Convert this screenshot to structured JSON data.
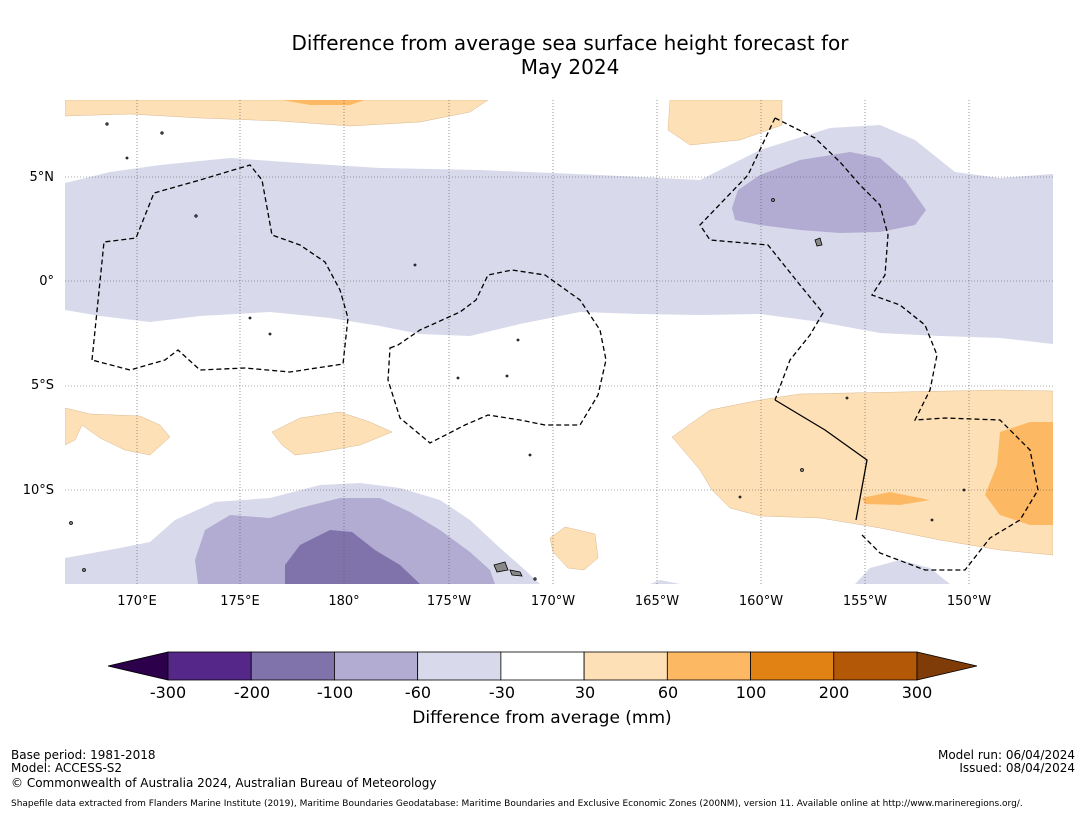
{
  "title": {
    "line1": "Difference from average sea surface height forecast for",
    "line2": "May 2024"
  },
  "map": {
    "lat_labels": [
      "5°N",
      "0°",
      "5°S",
      "10°S"
    ],
    "lon_labels": [
      "170°E",
      "175°E",
      "180°",
      "175°W",
      "170°W",
      "165°W",
      "160°W",
      "155°W",
      "150°W"
    ]
  },
  "colorbar": {
    "ticks": [
      "-300",
      "-200",
      "-100",
      "-60",
      "-30",
      "30",
      "60",
      "100",
      "200",
      "300"
    ],
    "colors": [
      "#2d004b",
      "#542788",
      "#8073ac",
      "#b2abd2",
      "#d8daeb",
      "#ffffff",
      "#fee0b6",
      "#fdb863",
      "#e08214",
      "#b35806",
      "#7f3b08"
    ],
    "title": "Difference from average (mm)"
  },
  "footer": {
    "base_period": "Base period: 1981-2018",
    "model": "Model: ACCESS-S2",
    "copyright": "© Commonwealth of Australia 2024, Australian Bureau of Meteorology",
    "model_run": "Model run: 06/04/2024",
    "issued": "Issued: 08/04/2024",
    "shapefile": "Shapefile data extracted from Flanders Marine Institute (2019), Maritime Boundaries Geodatabase: Maritime Boundaries and Exclusive Economic Zones (200NM), version 11. Available online at http://www.marineregions.org/."
  }
}
